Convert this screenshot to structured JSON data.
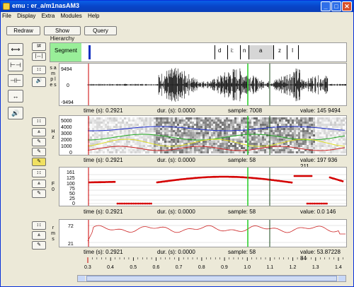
{
  "window": {
    "title": "emu : er_a/m1nasAM3",
    "minimize": "_",
    "maximize": "□",
    "close": "✕"
  },
  "menu": [
    "File",
    "Display",
    "Extra",
    "Modules",
    "Help"
  ],
  "toolbar": {
    "redraw": "Redraw",
    "show_hierarchy": "Show Hierarchy",
    "query": "Query"
  },
  "segment": {
    "tier": "Segment",
    "labels": [
      "d",
      "i:",
      "n",
      "a",
      "z",
      "I"
    ]
  },
  "waveform": {
    "y_axis_label": "s a m p l e s",
    "ticks": [
      "9494",
      "0",
      "-9494"
    ],
    "status": {
      "time": "time (s):  0.2921",
      "dur": "dur. (s):  0.0000",
      "sample": "sample:  7008",
      "value": "value:  145 9494"
    }
  },
  "spectrogram": {
    "y_axis_label": "H z",
    "ticks": [
      "5000",
      "4000",
      "3000",
      "2000",
      "1000",
      "0"
    ],
    "status": {
      "time": "time (s):  0.2921",
      "dur": "dur. (s):  0.0000",
      "sample": "sample:  58",
      "value": "value:  197 936 211"
    }
  },
  "f0": {
    "y_axis_label": "F 0",
    "ticks": [
      "161",
      "125",
      "100",
      "75",
      "50",
      "25",
      "0"
    ],
    "status": {
      "time": "time (s):  0.2921",
      "dur": "dur. (s):  0.0000",
      "sample": "sample:  58",
      "value": "value:  0.0 146"
    }
  },
  "rms": {
    "y_axis_label": "r m s",
    "ticks": [
      "72",
      "21"
    ],
    "status": {
      "time": "time (s):  0.2921",
      "dur": "dur. (s):  0.0000",
      "sample": "sample:  58",
      "value": "value:  53.87228 84"
    }
  },
  "time_axis": [
    "0.3",
    "0.4",
    "0.5",
    "0.6",
    "0.7",
    "0.8",
    "0.9",
    "1.0",
    "1.1",
    "1.2",
    "1.3",
    "1.4"
  ],
  "colors": {
    "cursor_red": "#cc0000",
    "cursor_green": "#22cc22",
    "cursor_dark": "#1a4a1a",
    "f0_dots": "#d40000",
    "segment_green": "#99ee99"
  }
}
